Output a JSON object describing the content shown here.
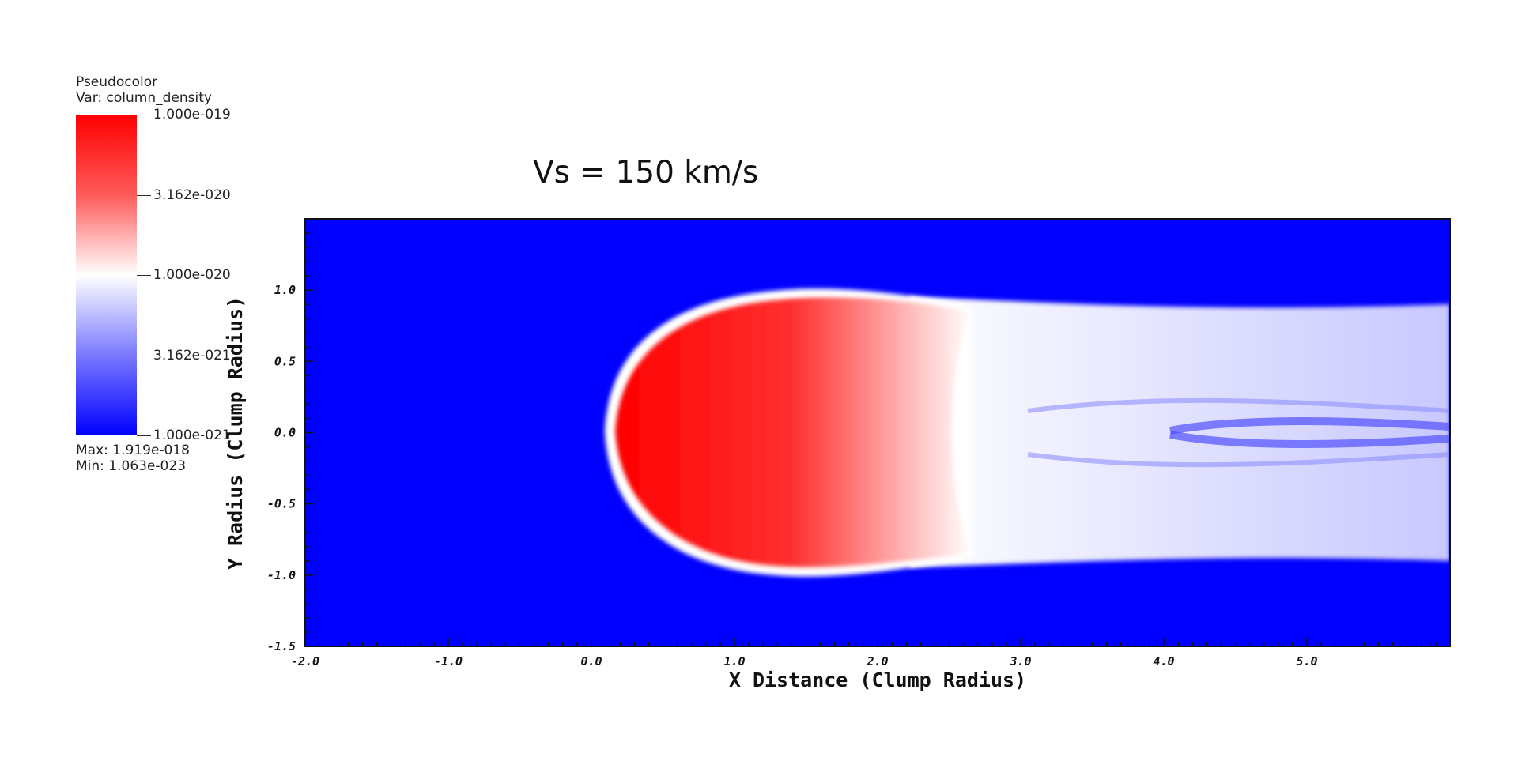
{
  "chart_data": {
    "type": "heatmap",
    "title": "Vs = 150 km/s",
    "xlabel": "X Distance (Clump Radius)",
    "ylabel": "Y Radius (Clump Radius)",
    "xlim": [
      -2.0,
      6.0
    ],
    "ylim": [
      -1.5,
      1.5
    ],
    "x_ticks": [
      "-2.0",
      "-1.0",
      "0.0",
      "1.0",
      "2.0",
      "3.0",
      "4.0",
      "5.0"
    ],
    "y_ticks": [
      "-1.5",
      "-1.0",
      "-0.5",
      "0.0",
      "0.5",
      "1.0"
    ],
    "x_tick_values": [
      -2.0,
      -1.0,
      0.0,
      1.0,
      2.0,
      3.0,
      4.0,
      5.0
    ],
    "y_tick_values": [
      -1.5,
      -1.0,
      -0.5,
      0.0,
      0.5,
      1.0
    ],
    "colormap": {
      "plot_type": "Pseudocolor",
      "variable": "Var: column_density",
      "ticks": [
        "1.000e-019",
        "3.162e-020",
        "1.000e-020",
        "3.162e-021",
        "1.000e-021"
      ],
      "tick_values": [
        1e-19,
        3.162e-20,
        1e-20,
        3.162e-21,
        1e-21
      ],
      "scale": "log",
      "colors": [
        "#ff0000",
        "#ffffff",
        "#0000ff"
      ],
      "max_label": "Max:  1.919e-018",
      "min_label": "Min:  1.063e-023"
    },
    "background_color": "#0000ff",
    "grid": false
  }
}
